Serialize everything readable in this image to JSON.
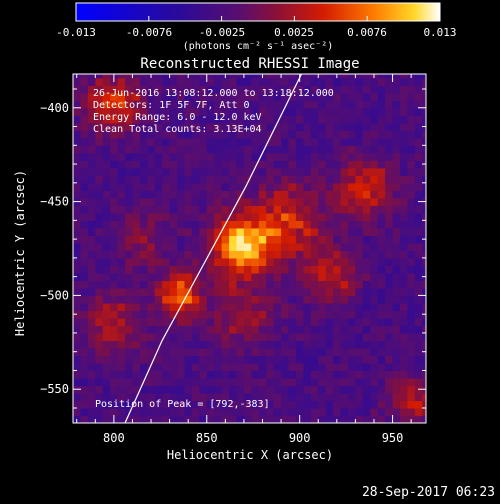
{
  "colorbar": {
    "tick_labels": [
      "-0.013",
      "-0.0076",
      "-0.0025",
      "0.0025",
      "0.0076",
      "0.013"
    ],
    "unit_label": "(photons cm⁻² s⁻¹ asec⁻²)",
    "range": [
      -0.013,
      0.013
    ]
  },
  "timestamp": "28-Sep-2017 06:23",
  "chart_data": {
    "type": "heatmap",
    "title": "Reconstructed RHESSI Image",
    "xlabel": "Heliocentric X (arcsec)",
    "ylabel": "Heliocentric Y (arcsec)",
    "xlim": [
      778,
      968
    ],
    "ylim": [
      -568,
      -382
    ],
    "x_ticks": [
      800,
      850,
      900,
      950
    ],
    "y_ticks": [
      -400,
      -450,
      -500,
      -550
    ],
    "annotations": [
      "26-Jun-2016 13:08:12.000 to 13:18:12.000",
      "Detectors: 1F 5F 7F, Att 0",
      "Energy Range: 6.0 - 12.0 keV",
      "Clean    Total counts: 3.13E+04"
    ],
    "peak_label": "Position of Peak = [792,-383]",
    "peak": [
      792,
      -383
    ],
    "sources": [
      {
        "x": 868,
        "y": -473,
        "sigma": 11,
        "amp": 0.013
      },
      {
        "x": 835,
        "y": -500,
        "sigma": 8,
        "amp": 0.011
      },
      {
        "x": 893,
        "y": -462,
        "sigma": 14,
        "amp": 0.0075
      },
      {
        "x": 935,
        "y": -443,
        "sigma": 11,
        "amp": 0.007
      },
      {
        "x": 918,
        "y": -490,
        "sigma": 9,
        "amp": 0.0065
      },
      {
        "x": 800,
        "y": -398,
        "sigma": 10,
        "amp": 0.0085
      },
      {
        "x": 800,
        "y": -515,
        "sigma": 11,
        "amp": 0.0055
      },
      {
        "x": 870,
        "y": -510,
        "sigma": 12,
        "amp": 0.0045
      },
      {
        "x": 960,
        "y": -555,
        "sigma": 9,
        "amp": 0.0055
      },
      {
        "x": 815,
        "y": -470,
        "sigma": 10,
        "amp": 0.004
      }
    ],
    "limb": [
      [
        806,
        -568
      ],
      [
        826,
        -524
      ],
      [
        848,
        -484
      ],
      [
        871,
        -442
      ],
      [
        891,
        -402
      ],
      [
        901,
        -382
      ]
    ]
  }
}
